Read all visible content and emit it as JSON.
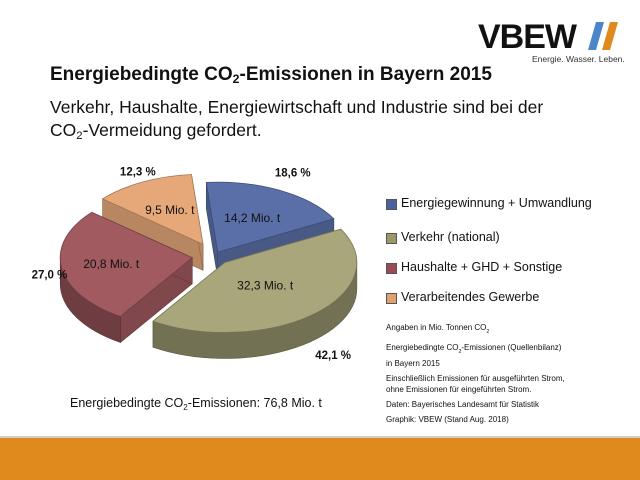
{
  "logo": {
    "text": "VBEW",
    "tagline": "Energie. Wasser. Leben."
  },
  "header": {
    "title_prefix": "Energiebedingte CO",
    "title_sub": "2",
    "title_suffix": "-Emissionen in Bayern 2015",
    "subtitle_line1": "Verkehr, Haushalte, Energiewirtschaft und Industrie sind bei der",
    "subtitle_prefix": "CO",
    "subtitle_sub": "2",
    "subtitle_suffix": "-Vermeidung gefordert."
  },
  "chart_data": {
    "type": "pie",
    "title": "",
    "categories": [
      "Energiegewinnung + Umwandlung",
      "Verkehr (national)",
      "Haushalte + GHD + Sonstige",
      "Verarbeitendes Gewerbe"
    ],
    "values": [
      14.2,
      32.3,
      20.8,
      9.5
    ],
    "value_labels": [
      "14,2 Mio. t",
      "32,3 Mio. t",
      "20,8 Mio. t",
      "9,5 Mio. t"
    ],
    "percent_labels": [
      "18,6 %",
      "42,1 %",
      "27,0 %",
      "12,3 %"
    ],
    "percents": [
      18.6,
      42.1,
      27.0,
      12.3
    ],
    "unit": "Mio. t",
    "colors": [
      "#5a6fa8",
      "#a8a67a",
      "#a05a60",
      "#e6a878"
    ],
    "legend_position": "right"
  },
  "legend": {
    "items": [
      {
        "label": "Energiegewinnung + Umwandlung",
        "color": "#4a60a0"
      },
      {
        "label": "Verkehr (national)",
        "color": "#9a9868"
      },
      {
        "label": "Haushalte + GHD + Sonstige",
        "color": "#9a4c54"
      },
      {
        "label": "Verarbeitendes Gewerbe",
        "color": "#e0a070"
      }
    ]
  },
  "notes": {
    "unit_prefix": "Angaben in Mio. Tonnen CO",
    "unit_sub": "2",
    "balance_prefix": "Energiebedingte CO",
    "balance_sub": "2",
    "balance_suffix": "-Emissionen (Quellenbilanz)",
    "balance_line2": "in Bayern 2015",
    "strom_line1": "Einschließlich Emissionen für ausgeführten Strom,",
    "strom_line2": "ohne Emissionen für eingeführten Strom.",
    "source": "Daten: Bayerisches Landesamt für Statistik",
    "graphic": "Graphik: VBEW (Stand Aug. 2018)"
  },
  "total": {
    "prefix": "Energiebedingte CO",
    "sub": "2",
    "suffix": "-Emissionen:  76,8 Mio. t"
  }
}
